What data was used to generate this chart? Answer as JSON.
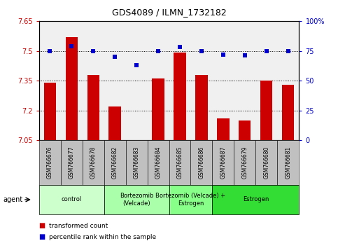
{
  "title": "GDS4089 / ILMN_1732182",
  "samples": [
    "GSM766676",
    "GSM766677",
    "GSM766678",
    "GSM766682",
    "GSM766683",
    "GSM766684",
    "GSM766685",
    "GSM766686",
    "GSM766687",
    "GSM766679",
    "GSM766680",
    "GSM766681"
  ],
  "red_values": [
    7.34,
    7.57,
    7.38,
    7.22,
    7.05,
    7.36,
    7.49,
    7.38,
    7.16,
    7.15,
    7.35,
    7.33
  ],
  "blue_values": [
    75,
    79,
    75,
    70,
    63,
    75,
    78,
    75,
    72,
    71,
    75,
    75
  ],
  "y_min": 7.05,
  "y_max": 7.65,
  "y_ticks_left": [
    7.05,
    7.2,
    7.35,
    7.5,
    7.65
  ],
  "y_ticks_right": [
    0,
    25,
    50,
    75,
    100
  ],
  "grid_lines": [
    7.2,
    7.35,
    7.5
  ],
  "bar_color": "#cc0000",
  "dot_color": "#0000cc",
  "plot_bg": "#f0f0f0",
  "xtick_bg": "#c0c0c0",
  "group_colors": [
    "#ccffcc",
    "#aaffaa",
    "#88ff88",
    "#33dd33"
  ],
  "groups": [
    {
      "label": "control",
      "start": 0,
      "end": 3
    },
    {
      "label": "Bortezomib\n(Velcade)",
      "start": 3,
      "end": 6
    },
    {
      "label": "Bortezomib (Velcade) +\nEstrogen",
      "start": 6,
      "end": 8
    },
    {
      "label": "Estrogen",
      "start": 8,
      "end": 12
    }
  ],
  "left_color": "#cc0000",
  "right_color": "#0000cc",
  "agent_label": "agent",
  "legend": [
    {
      "color": "#cc0000",
      "label": "transformed count"
    },
    {
      "color": "#0000cc",
      "label": "percentile rank within the sample"
    }
  ]
}
